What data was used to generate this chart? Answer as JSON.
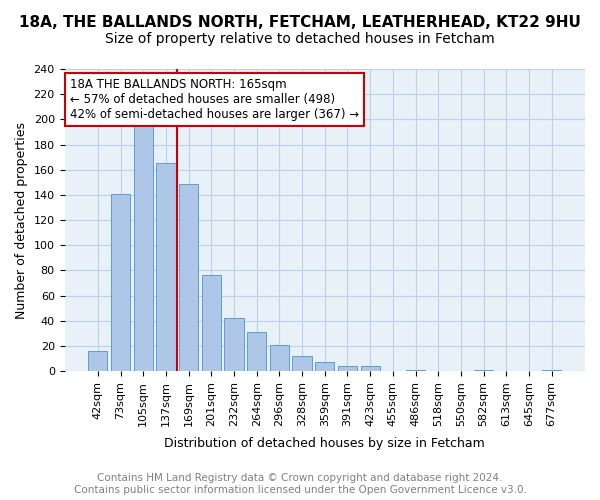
{
  "title1": "18A, THE BALLANDS NORTH, FETCHAM, LEATHERHEAD, KT22 9HU",
  "title2": "Size of property relative to detached houses in Fetcham",
  "xlabel": "Distribution of detached houses by size in Fetcham",
  "ylabel": "Number of detached properties",
  "categories": [
    "42sqm",
    "73sqm",
    "105sqm",
    "137sqm",
    "169sqm",
    "201sqm",
    "232sqm",
    "264sqm",
    "296sqm",
    "328sqm",
    "359sqm",
    "391sqm",
    "423sqm",
    "455sqm",
    "486sqm",
    "518sqm",
    "550sqm",
    "582sqm",
    "613sqm",
    "645sqm",
    "677sqm"
  ],
  "values": [
    16,
    141,
    198,
    165,
    149,
    76,
    42,
    31,
    21,
    12,
    7,
    4,
    4,
    0,
    1,
    0,
    0,
    1,
    0,
    0,
    1
  ],
  "bar_color": "#aec6e8",
  "bar_edge_color": "#5a9fd4",
  "vline_x_index": 4,
  "vline_color": "#cc0000",
  "annotation_text": "18A THE BALLANDS NORTH: 165sqm\n← 57% of detached houses are smaller (498)\n42% of semi-detached houses are larger (367) →",
  "annotation_box_color": "white",
  "annotation_box_edge_color": "#cc0000",
  "ylim": [
    0,
    240
  ],
  "yticks": [
    0,
    20,
    40,
    60,
    80,
    100,
    120,
    140,
    160,
    180,
    200,
    220,
    240
  ],
  "grid_color": "#c0d0e8",
  "bg_color": "#e8f0f8",
  "footer1": "Contains HM Land Registry data © Crown copyright and database right 2024.",
  "footer2": "Contains public sector information licensed under the Open Government Licence v3.0.",
  "title1_fontsize": 11,
  "title2_fontsize": 10,
  "xlabel_fontsize": 9,
  "ylabel_fontsize": 9,
  "tick_fontsize": 8,
  "annotation_fontsize": 8.5,
  "footer_fontsize": 7.5
}
